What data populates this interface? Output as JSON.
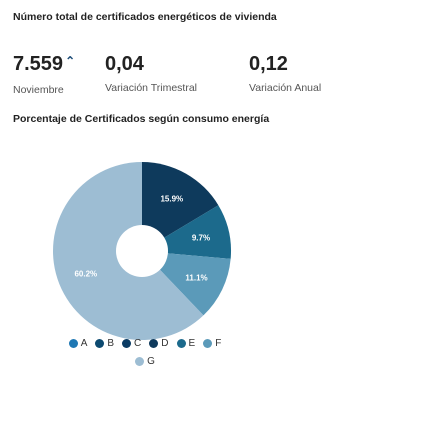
{
  "header": {
    "title": "Número total de certificados energéticos de vivienda"
  },
  "kpis": [
    {
      "value": "7.559",
      "trend": "⌃",
      "label": "Noviembre"
    },
    {
      "value": "0,04",
      "label": "Variación Trimestral"
    },
    {
      "value": "0,12",
      "label": "Variación Anual"
    }
  ],
  "chart_data": {
    "type": "pie",
    "title": "Porcentaje de Certificados según consumo energía",
    "categories": [
      "A",
      "B",
      "C",
      "D",
      "E",
      "F",
      "G"
    ],
    "values": [
      0.0,
      0.0,
      0.0,
      15.9,
      9.7,
      11.1,
      60.2
    ],
    "labels": [
      "",
      "",
      "",
      "15.9%",
      "9.7%",
      "11.1%",
      "60.2%"
    ],
    "colors": [
      "#1f78b4",
      "#0d4a70",
      "#0b3c64",
      "#0e3a5c",
      "#1c6a8c",
      "#5b9ab9",
      "#9dbdd3"
    ],
    "donut_hole": true,
    "legend_position": "bottom"
  }
}
